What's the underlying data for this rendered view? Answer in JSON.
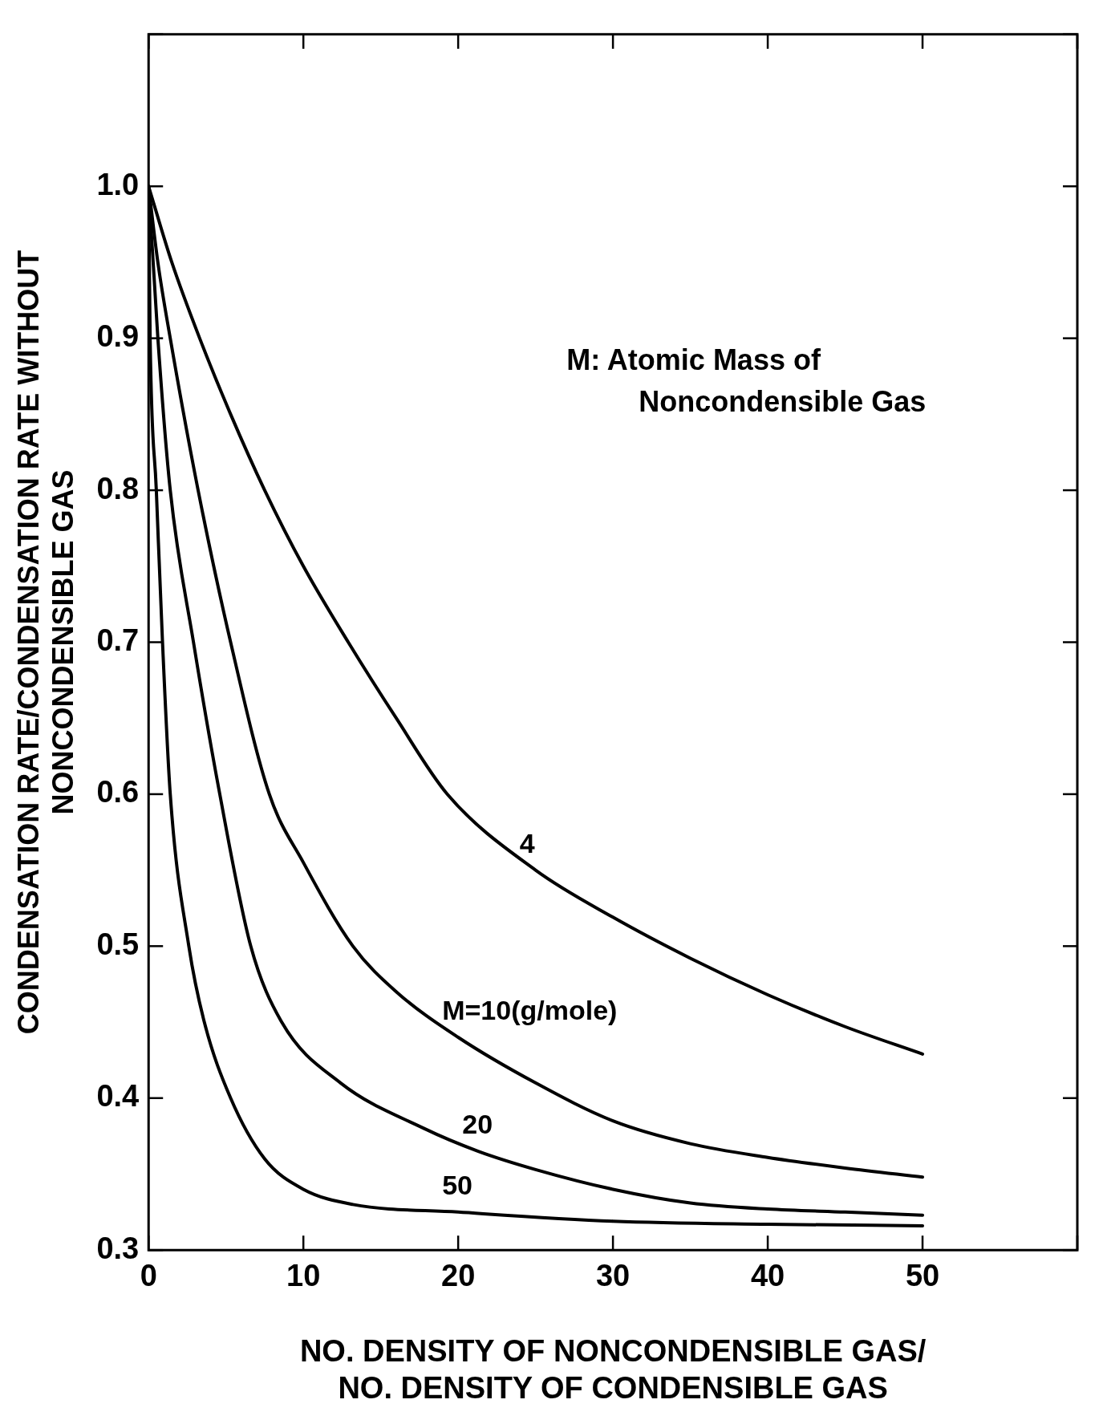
{
  "chart_data": {
    "type": "line",
    "xlabel": "NO. DENSITY OF NONCONDENSIBLE GAS/ NO. DENSITY OF CONDENSIBLE GAS",
    "ylabel": "CONDENSATION RATE/CONDENSATION RATE WITHOUT NONCONDENSIBLE GAS",
    "annotations": [
      "M: Atomic Mass of Noncondensible Gas"
    ],
    "xlim": [
      0,
      60
    ],
    "xticks": [
      0,
      10,
      20,
      30,
      40,
      50,
      {
        "value": 60,
        "label": null
      }
    ],
    "ylim": [
      0.3,
      1.1
    ],
    "yticks": [
      0.3,
      0.4,
      0.5,
      0.6,
      0.7,
      0.8,
      0.9,
      {
        "value": 1.0,
        "label": "1.0"
      },
      {
        "value": 1.1,
        "label": null
      }
    ],
    "grid": false,
    "legend": false,
    "marker": "none",
    "line_style": "solid",
    "series": [
      {
        "name": "4",
        "color": "#000000",
        "x": [
          0,
          1.5,
          3.3,
          5.3,
          7.5,
          10,
          12.9,
          16,
          19.3,
          25,
          30,
          35,
          40,
          45,
          50
        ],
        "values": [
          1.0,
          0.95,
          0.9,
          0.85,
          0.8,
          0.75,
          0.7,
          0.65,
          0.6,
          0.55,
          0.519,
          0.492,
          0.468,
          0.447,
          0.429
        ]
      },
      {
        "name": "M=10(g/mole)",
        "color": "#000000",
        "x": [
          0,
          0.6,
          1.4,
          3.2,
          5.3,
          7.8,
          10,
          13.2,
          16,
          20,
          25,
          30,
          35,
          40,
          45,
          50
        ],
        "values": [
          1.0,
          0.95,
          0.9,
          0.8,
          0.7,
          0.6,
          0.555,
          0.5,
          0.47,
          0.44,
          0.41,
          0.385,
          0.37,
          0.361,
          0.354,
          0.348
        ]
      },
      {
        "name": "20",
        "color": "#000000",
        "x": [
          0,
          0.6,
          1.4,
          2.9,
          4.6,
          6.6,
          8.6,
          12.4,
          17.8,
          21.3,
          25,
          30,
          35,
          40,
          45,
          50
        ],
        "values": [
          1.0,
          0.9,
          0.8,
          0.7,
          0.6,
          0.5,
          0.45,
          0.41,
          0.38,
          0.365,
          0.353,
          0.34,
          0.331,
          0.327,
          0.325,
          0.323
        ]
      },
      {
        "name": "50",
        "color": "#000000",
        "x": [
          0,
          0.1,
          0.5,
          0.9,
          1.4,
          2.6,
          3.6,
          5.3,
          7.5,
          10,
          13.2,
          20,
          30,
          40,
          50
        ],
        "values": [
          1.0,
          0.9,
          0.8,
          0.7,
          0.6,
          0.5,
          0.45,
          0.4,
          0.36,
          0.34,
          0.33,
          0.325,
          0.319,
          0.317,
          0.316
        ]
      }
    ]
  }
}
